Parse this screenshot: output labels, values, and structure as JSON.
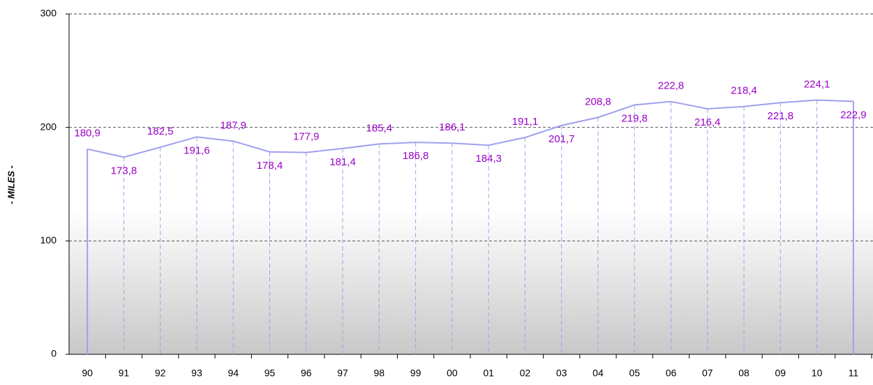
{
  "chart_data": {
    "type": "line",
    "y_label": "- MILES -",
    "categories": [
      "90",
      "91",
      "92",
      "93",
      "94",
      "95",
      "96",
      "97",
      "98",
      "99",
      "00",
      "01",
      "02",
      "03",
      "04",
      "05",
      "06",
      "07",
      "08",
      "09",
      "10",
      "11"
    ],
    "values": [
      180.9,
      173.8,
      182.5,
      191.6,
      187.9,
      178.4,
      177.9,
      181.4,
      185.4,
      186.8,
      186.1,
      184.3,
      191.1,
      201.7,
      208.8,
      219.8,
      222.8,
      216.4,
      218.4,
      221.8,
      224.1,
      222.9
    ],
    "value_labels": [
      "180,9",
      "173,8",
      "182,5",
      "191,6",
      "187,9",
      "178,4",
      "177,9",
      "181,4",
      "185,4",
      "186,8",
      "186,1",
      "184,3",
      "191,1",
      "201,7",
      "208,8",
      "219,8",
      "222,8",
      "216,4",
      "218,4",
      "221,8",
      "224,1",
      "222,9"
    ],
    "color": "#9f9ff0",
    "label_color": "#9a00c8",
    "ylim": [
      0,
      300
    ],
    "yticks": [
      0,
      100,
      200,
      300
    ],
    "grid": true
  }
}
